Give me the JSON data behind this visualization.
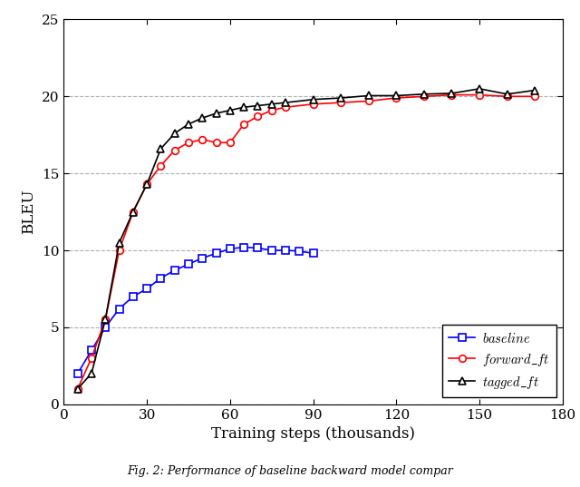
{
  "baseline_x": [
    5,
    10,
    15,
    20,
    25,
    30,
    35,
    40,
    45,
    50,
    55,
    60,
    65,
    70,
    75,
    80,
    85,
    90
  ],
  "baseline_y": [
    2.0,
    3.5,
    5.0,
    6.2,
    7.0,
    7.5,
    8.2,
    8.7,
    9.1,
    9.5,
    9.8,
    10.1,
    10.2,
    10.15,
    10.0,
    10.0,
    9.95,
    9.8
  ],
  "forward_ft_x": [
    5,
    10,
    15,
    20,
    25,
    30,
    35,
    40,
    45,
    50,
    55,
    60,
    65,
    70,
    75,
    80,
    90,
    100,
    110,
    120,
    130,
    140,
    150,
    160,
    170
  ],
  "forward_ft_y": [
    1.0,
    3.0,
    5.5,
    10.0,
    12.5,
    14.3,
    15.5,
    16.5,
    17.0,
    17.2,
    17.0,
    17.0,
    18.2,
    18.7,
    19.1,
    19.3,
    19.5,
    19.6,
    19.7,
    19.9,
    20.0,
    20.1,
    20.1,
    20.0,
    20.0
  ],
  "tagged_ft_x": [
    5,
    10,
    15,
    20,
    25,
    30,
    35,
    40,
    45,
    50,
    55,
    60,
    65,
    70,
    75,
    80,
    90,
    100,
    110,
    120,
    130,
    140,
    150,
    160,
    170
  ],
  "tagged_ft_y": [
    1.0,
    2.0,
    5.5,
    10.5,
    12.5,
    14.3,
    16.6,
    17.6,
    18.2,
    18.6,
    18.9,
    19.1,
    19.3,
    19.4,
    19.5,
    19.6,
    19.8,
    19.9,
    20.05,
    20.05,
    20.15,
    20.2,
    20.5,
    20.15,
    20.4
  ],
  "baseline_color": "#0000ff",
  "forward_ft_color": "#ff0000",
  "tagged_ft_color": "#000000",
  "xlabel": "Training steps (thousands)",
  "ylabel": "BLEU",
  "xlim": [
    0,
    180
  ],
  "ylim": [
    0,
    25
  ],
  "xticks": [
    0,
    30,
    60,
    90,
    120,
    150,
    180
  ],
  "yticks": [
    0,
    5,
    10,
    15,
    20,
    25
  ],
  "grid_color": "#b0b0b0",
  "background_color": "#ffffff",
  "legend_labels": [
    "baseline",
    "forward_ft",
    "tagged_ft"
  ],
  "legend_loc": "lower right",
  "caption": "Fig. 2: Performance of baseline backward model compar"
}
